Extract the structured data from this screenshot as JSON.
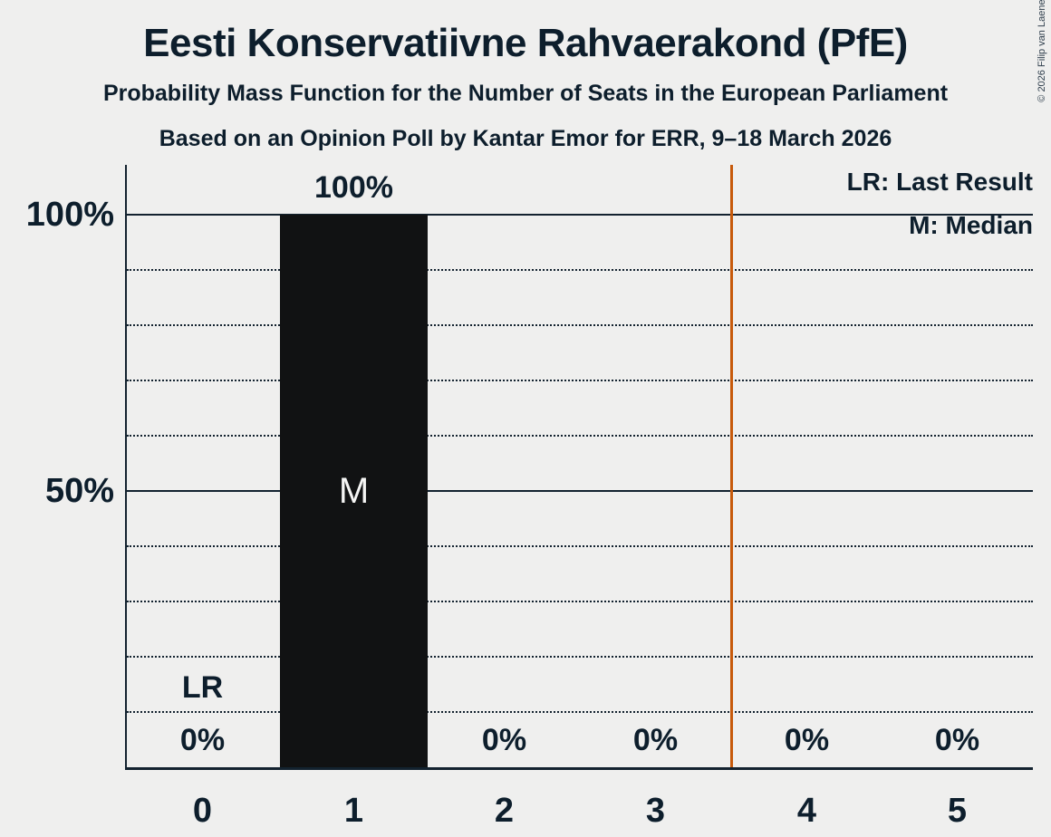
{
  "header": {
    "title": "Eesti Konservatiivne Rahvaerakond (PfE)",
    "subtitle1": "Probability Mass Function for the Number of Seats in the European Parliament",
    "subtitle2": "Based on an Opinion Poll by Kantar Emor for ERR, 9–18 March 2026"
  },
  "copyright": "© 2026 Filip van Laenen",
  "legend": {
    "items": [
      {
        "label": "LR: Last Result"
      },
      {
        "label": "M: Median"
      }
    ]
  },
  "chart_data": {
    "type": "bar",
    "title": "Eesti Konservatiivne Rahvaerakond (PfE)",
    "subtitle": "Probability Mass Function for the Number of Seats in the European Parliament",
    "source_line": "Based on an Opinion Poll by Kantar Emor for ERR, 9–18 March 2026",
    "categories": [
      "0",
      "1",
      "2",
      "3",
      "4",
      "5"
    ],
    "values": [
      0,
      100,
      0,
      0,
      0,
      0
    ],
    "value_labels": [
      "0%",
      "100%",
      "0%",
      "0%",
      "0%",
      "0%"
    ],
    "ylim": [
      0,
      109
    ],
    "yticks": [
      {
        "value": 100,
        "label": "100%"
      },
      {
        "value": 50,
        "label": "50%"
      }
    ],
    "solid_gridlines": [
      100,
      50
    ],
    "dotted_gridlines": [
      90,
      80,
      70,
      60,
      40,
      30,
      20,
      10
    ],
    "grid": "on",
    "legend_position": "top-right",
    "median_category": "1",
    "median_marker": "M",
    "last_result_category": "0",
    "last_result_marker": "LR",
    "annotations": [
      {
        "text": "LR",
        "category_index": 0,
        "y_pct": 14.5
      },
      {
        "text": "M",
        "category_index": 1,
        "y_pct": 50
      }
    ],
    "vertical_line": {
      "x_seats": 3.5,
      "color": "#c75a0b"
    },
    "colors": {
      "bar": "#111213",
      "text": "#0d1e2c",
      "bar_label": "#f5f5f4",
      "background": "#efefee",
      "grid": "#13222f"
    }
  }
}
